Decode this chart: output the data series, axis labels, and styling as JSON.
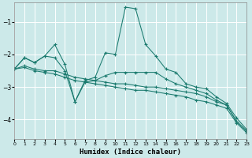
{
  "xlabel": "Humidex (Indice chaleur)",
  "xlim": [
    0,
    23
  ],
  "ylim": [
    -4.6,
    -0.4
  ],
  "yticks": [
    -4,
    -3,
    -2,
    -1
  ],
  "xticks": [
    0,
    1,
    2,
    3,
    4,
    5,
    6,
    7,
    8,
    9,
    10,
    11,
    12,
    13,
    14,
    15,
    16,
    17,
    18,
    19,
    20,
    21,
    22,
    23
  ],
  "background_color": "#cce9e9",
  "grid_color": "#b0d8d8",
  "line_color": "#1a7a6e",
  "lines": [
    {
      "x": [
        0,
        1,
        2,
        3,
        4,
        5,
        6,
        7,
        8,
        9,
        10,
        11,
        12,
        13,
        14,
        15,
        16,
        17,
        18,
        19,
        20,
        21,
        22,
        23
      ],
      "y": [
        -2.45,
        -2.1,
        -2.25,
        -2.05,
        -1.7,
        -2.3,
        -3.45,
        -2.8,
        -2.7,
        -1.95,
        -2.0,
        -0.55,
        -0.6,
        -1.7,
        -2.05,
        -2.45,
        -2.55,
        -2.9,
        -3.0,
        -3.05,
        -3.3,
        -3.5,
        -3.95,
        -4.3
      ]
    },
    {
      "x": [
        0,
        1,
        2,
        3,
        4,
        5,
        6,
        7,
        8,
        9,
        10,
        11,
        12,
        13,
        14,
        15,
        16,
        17,
        18,
        19,
        20,
        21,
        22,
        23
      ],
      "y": [
        -2.45,
        -2.1,
        -2.25,
        -2.05,
        -2.1,
        -2.5,
        -3.45,
        -2.85,
        -2.8,
        -2.65,
        -2.55,
        -2.55,
        -2.55,
        -2.55,
        -2.55,
        -2.75,
        -2.9,
        -3.0,
        -3.1,
        -3.2,
        -3.4,
        -3.55,
        -4.05,
        -4.35
      ]
    },
    {
      "x": [
        0,
        1,
        2,
        3,
        4,
        5,
        6,
        7,
        8,
        9,
        10,
        11,
        12,
        13,
        14,
        15,
        16,
        17,
        18,
        19,
        20,
        21,
        22,
        23
      ],
      "y": [
        -2.45,
        -2.35,
        -2.45,
        -2.5,
        -2.5,
        -2.6,
        -2.7,
        -2.75,
        -2.8,
        -2.85,
        -2.9,
        -2.9,
        -2.95,
        -3.0,
        -3.0,
        -3.05,
        -3.1,
        -3.15,
        -3.2,
        -3.3,
        -3.45,
        -3.55,
        -4.05,
        -4.35
      ]
    },
    {
      "x": [
        0,
        1,
        2,
        3,
        4,
        5,
        6,
        7,
        8,
        9,
        10,
        11,
        12,
        13,
        14,
        15,
        16,
        17,
        18,
        19,
        20,
        21,
        22,
        23
      ],
      "y": [
        -2.45,
        -2.4,
        -2.5,
        -2.55,
        -2.6,
        -2.7,
        -2.8,
        -2.85,
        -2.9,
        -2.95,
        -3.0,
        -3.05,
        -3.1,
        -3.1,
        -3.15,
        -3.2,
        -3.25,
        -3.3,
        -3.4,
        -3.45,
        -3.55,
        -3.65,
        -4.1,
        -4.4
      ]
    }
  ]
}
